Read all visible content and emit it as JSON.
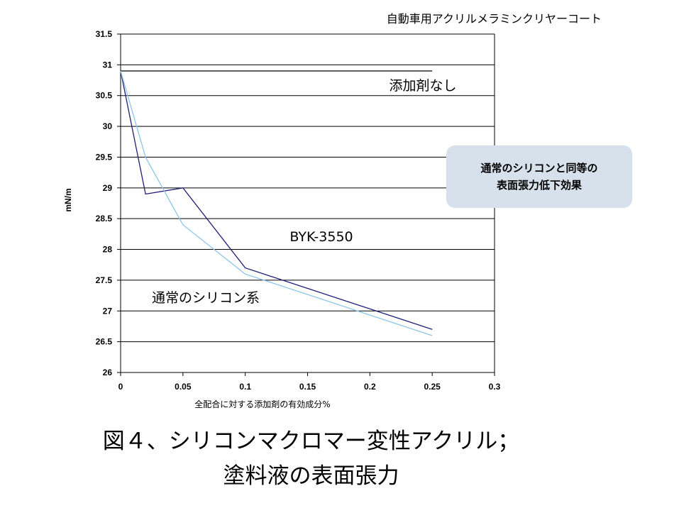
{
  "chart_data": {
    "type": "line",
    "title": "自動車用アクリルメラミンクリヤーコート",
    "ylabel": "mN/m",
    "xlabel": "全配合に対する添加剤の有効成分%",
    "xlim": [
      0,
      0.3
    ],
    "ylim": [
      26,
      31.5
    ],
    "x_ticks": [
      "0",
      "0.05",
      "0.1",
      "0.15",
      "0.2",
      "0.25",
      "0.3"
    ],
    "y_ticks": [
      "26",
      "26.5",
      "27",
      "27.5",
      "28",
      "28.5",
      "29",
      "29.5",
      "30",
      "30.5",
      "31",
      "31.5"
    ],
    "grid": "horizontal",
    "series": [
      {
        "name": "添加剤なし",
        "color": "#000000",
        "x": [
          0,
          0.25
        ],
        "y": [
          30.9,
          30.9
        ]
      },
      {
        "name": "BYK-3550",
        "color": "#1f1f7a",
        "x": [
          0,
          0.02,
          0.05,
          0.1,
          0.25
        ],
        "y": [
          30.9,
          28.9,
          29.0,
          27.7,
          26.7
        ]
      },
      {
        "name": "通常のシリコン系",
        "color": "#8ec5ea",
        "x": [
          0,
          0.02,
          0.05,
          0.1,
          0.25
        ],
        "y": [
          30.9,
          29.5,
          28.4,
          27.6,
          26.6
        ]
      }
    ]
  },
  "callout": "通常のシリコンと同等の\n表面張力低下効果",
  "caption_line1": "図４、シリコンマクロマー変性アクリル；",
  "caption_line2": "塗料液の表面張力"
}
